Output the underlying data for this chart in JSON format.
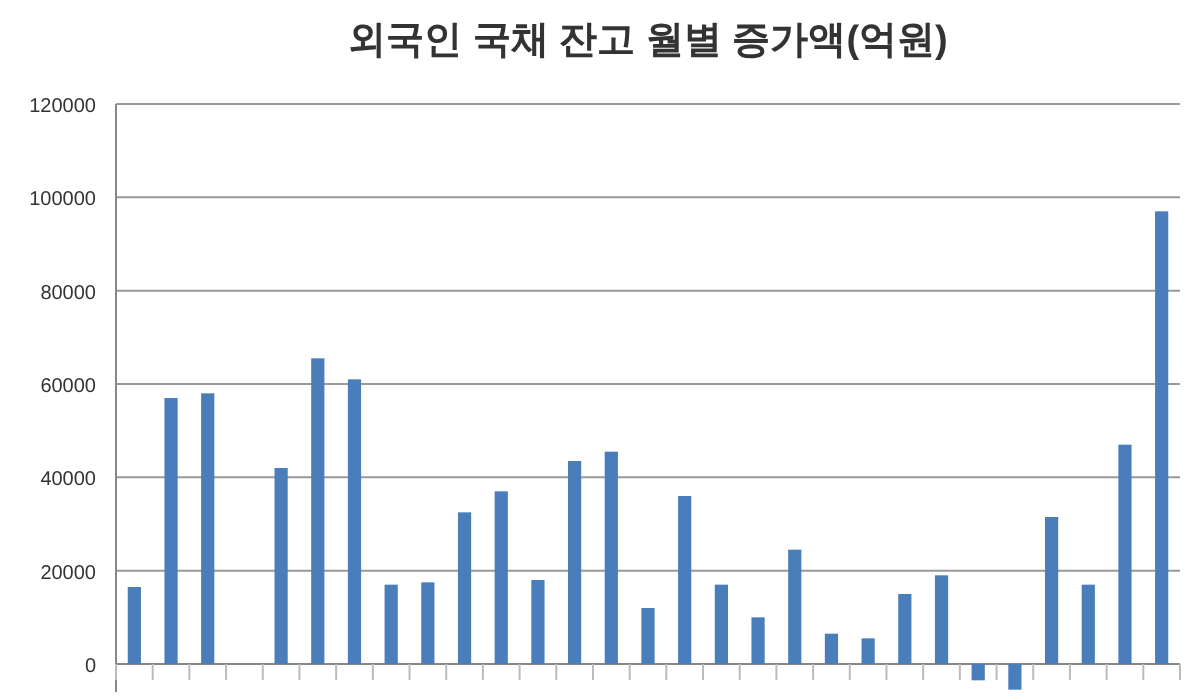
{
  "chart_data": {
    "type": "bar",
    "title": "외국인 국채 잔고 월별 증가액(억원)",
    "categories": [
      null,
      null,
      null,
      null,
      null,
      null,
      null,
      null,
      null,
      null,
      null,
      null,
      null,
      null,
      null,
      null,
      null,
      null,
      null,
      null,
      null,
      null,
      null,
      null,
      null,
      null,
      null,
      null,
      null
    ],
    "values": [
      16500,
      57000,
      58000,
      null,
      42000,
      65500,
      61000,
      17000,
      17500,
      32500,
      37000,
      18000,
      43500,
      45500,
      12000,
      36000,
      17000,
      10000,
      24500,
      6500,
      5500,
      15000,
      19000,
      -3500,
      -5500,
      31500,
      17000,
      47000,
      97000
    ],
    "color": "#4a7ebb",
    "ylim": [
      -6000,
      120000
    ],
    "yticks": [
      0,
      20000,
      40000,
      60000,
      80000,
      100000,
      120000
    ],
    "grid": "y"
  }
}
